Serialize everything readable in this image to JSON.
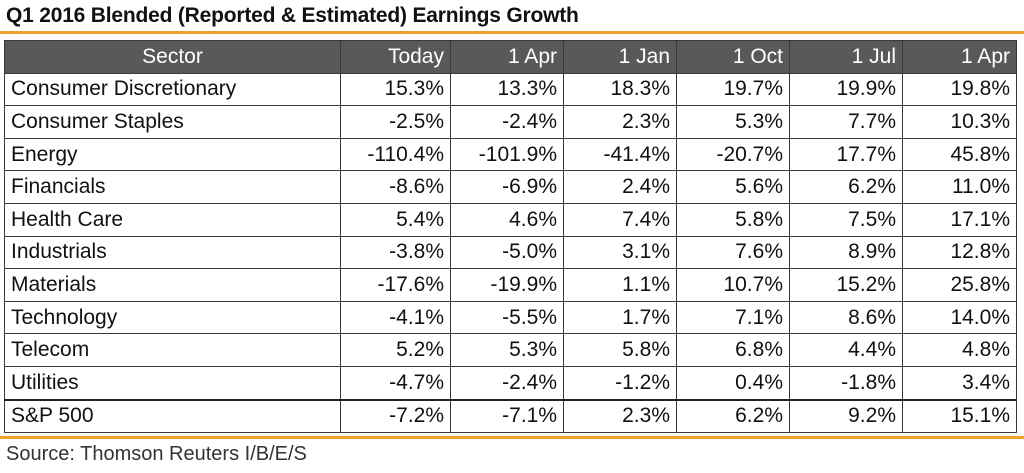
{
  "title": "Q1 2016 Blended (Reported & Estimated) Earnings Growth",
  "accent_color": "#f0a030",
  "header_bg": "#595959",
  "source": "Source: Thomson Reuters I/B/E/S",
  "chart_data": {
    "type": "table",
    "title": "Q1 2016 Blended (Reported & Estimated) Earnings Growth",
    "columns": [
      "Sector",
      "Today",
      "1 Apr",
      "1 Jan",
      "1 Oct",
      "1 Jul",
      "1 Apr"
    ],
    "rows": [
      {
        "sector": "Consumer Discretionary",
        "values": [
          "15.3%",
          "13.3%",
          "18.3%",
          "19.7%",
          "19.9%",
          "19.8%"
        ]
      },
      {
        "sector": "Consumer Staples",
        "values": [
          "-2.5%",
          "-2.4%",
          "2.3%",
          "5.3%",
          "7.7%",
          "10.3%"
        ]
      },
      {
        "sector": "Energy",
        "values": [
          "-110.4%",
          "-101.9%",
          "-41.4%",
          "-20.7%",
          "17.7%",
          "45.8%"
        ]
      },
      {
        "sector": "Financials",
        "values": [
          "-8.6%",
          "-6.9%",
          "2.4%",
          "5.6%",
          "6.2%",
          "11.0%"
        ]
      },
      {
        "sector": "Health Care",
        "values": [
          "5.4%",
          "4.6%",
          "7.4%",
          "5.8%",
          "7.5%",
          "17.1%"
        ]
      },
      {
        "sector": "Industrials",
        "values": [
          "-3.8%",
          "-5.0%",
          "3.1%",
          "7.6%",
          "8.9%",
          "12.8%"
        ]
      },
      {
        "sector": "Materials",
        "values": [
          "-17.6%",
          "-19.9%",
          "1.1%",
          "10.7%",
          "15.2%",
          "25.8%"
        ]
      },
      {
        "sector": "Technology",
        "values": [
          "-4.1%",
          "-5.5%",
          "1.7%",
          "7.1%",
          "8.6%",
          "14.0%"
        ]
      },
      {
        "sector": "Telecom",
        "values": [
          "5.2%",
          "5.3%",
          "5.8%",
          "6.8%",
          "4.4%",
          "4.8%"
        ]
      },
      {
        "sector": "Utilities",
        "values": [
          "-4.7%",
          "-2.4%",
          "-1.2%",
          "0.4%",
          "-1.8%",
          "3.4%"
        ]
      }
    ],
    "total": {
      "sector": "S&P 500",
      "values": [
        "-7.2%",
        "-7.1%",
        "2.3%",
        "6.2%",
        "9.2%",
        "15.1%"
      ]
    }
  }
}
